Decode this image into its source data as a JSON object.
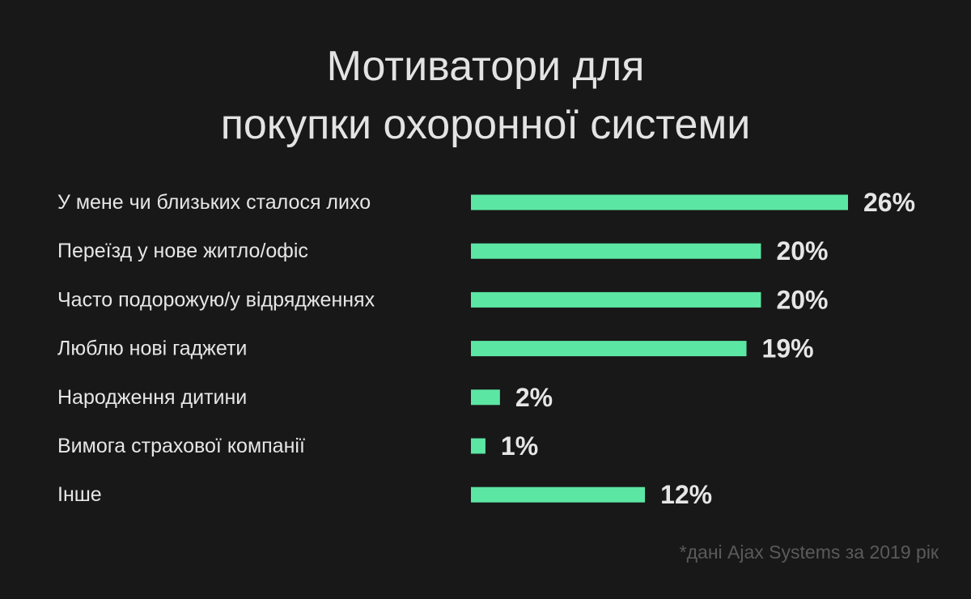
{
  "title_lines": [
    "Мотиватори для",
    "покупки охоронної системи"
  ],
  "source_note": "*дані Ajax Systems за 2019 рік",
  "colors": {
    "background": "#181818",
    "bar": "#5ce6a3",
    "text": "#e6e6e6",
    "source_text": "#5a5a5a"
  },
  "chart_data": {
    "type": "bar",
    "orientation": "horizontal",
    "title": "Мотиватори для покупки охоронної системи",
    "categories": [
      "У мене чи близьких сталося лихо",
      "Переїзд у нове житло/офіс",
      "Часто подорожую/у відрядженнях",
      "Люблю нові гаджети",
      "Народження дитини",
      "Вимога страхової компанії",
      "Інше"
    ],
    "values": [
      26,
      20,
      20,
      19,
      2,
      1,
      12
    ],
    "value_labels": [
      "26%",
      "20%",
      "20%",
      "19%",
      "2%",
      "1%",
      "12%"
    ],
    "unit": "%",
    "xlim": [
      0,
      26
    ],
    "grid": false,
    "legend": "none"
  }
}
